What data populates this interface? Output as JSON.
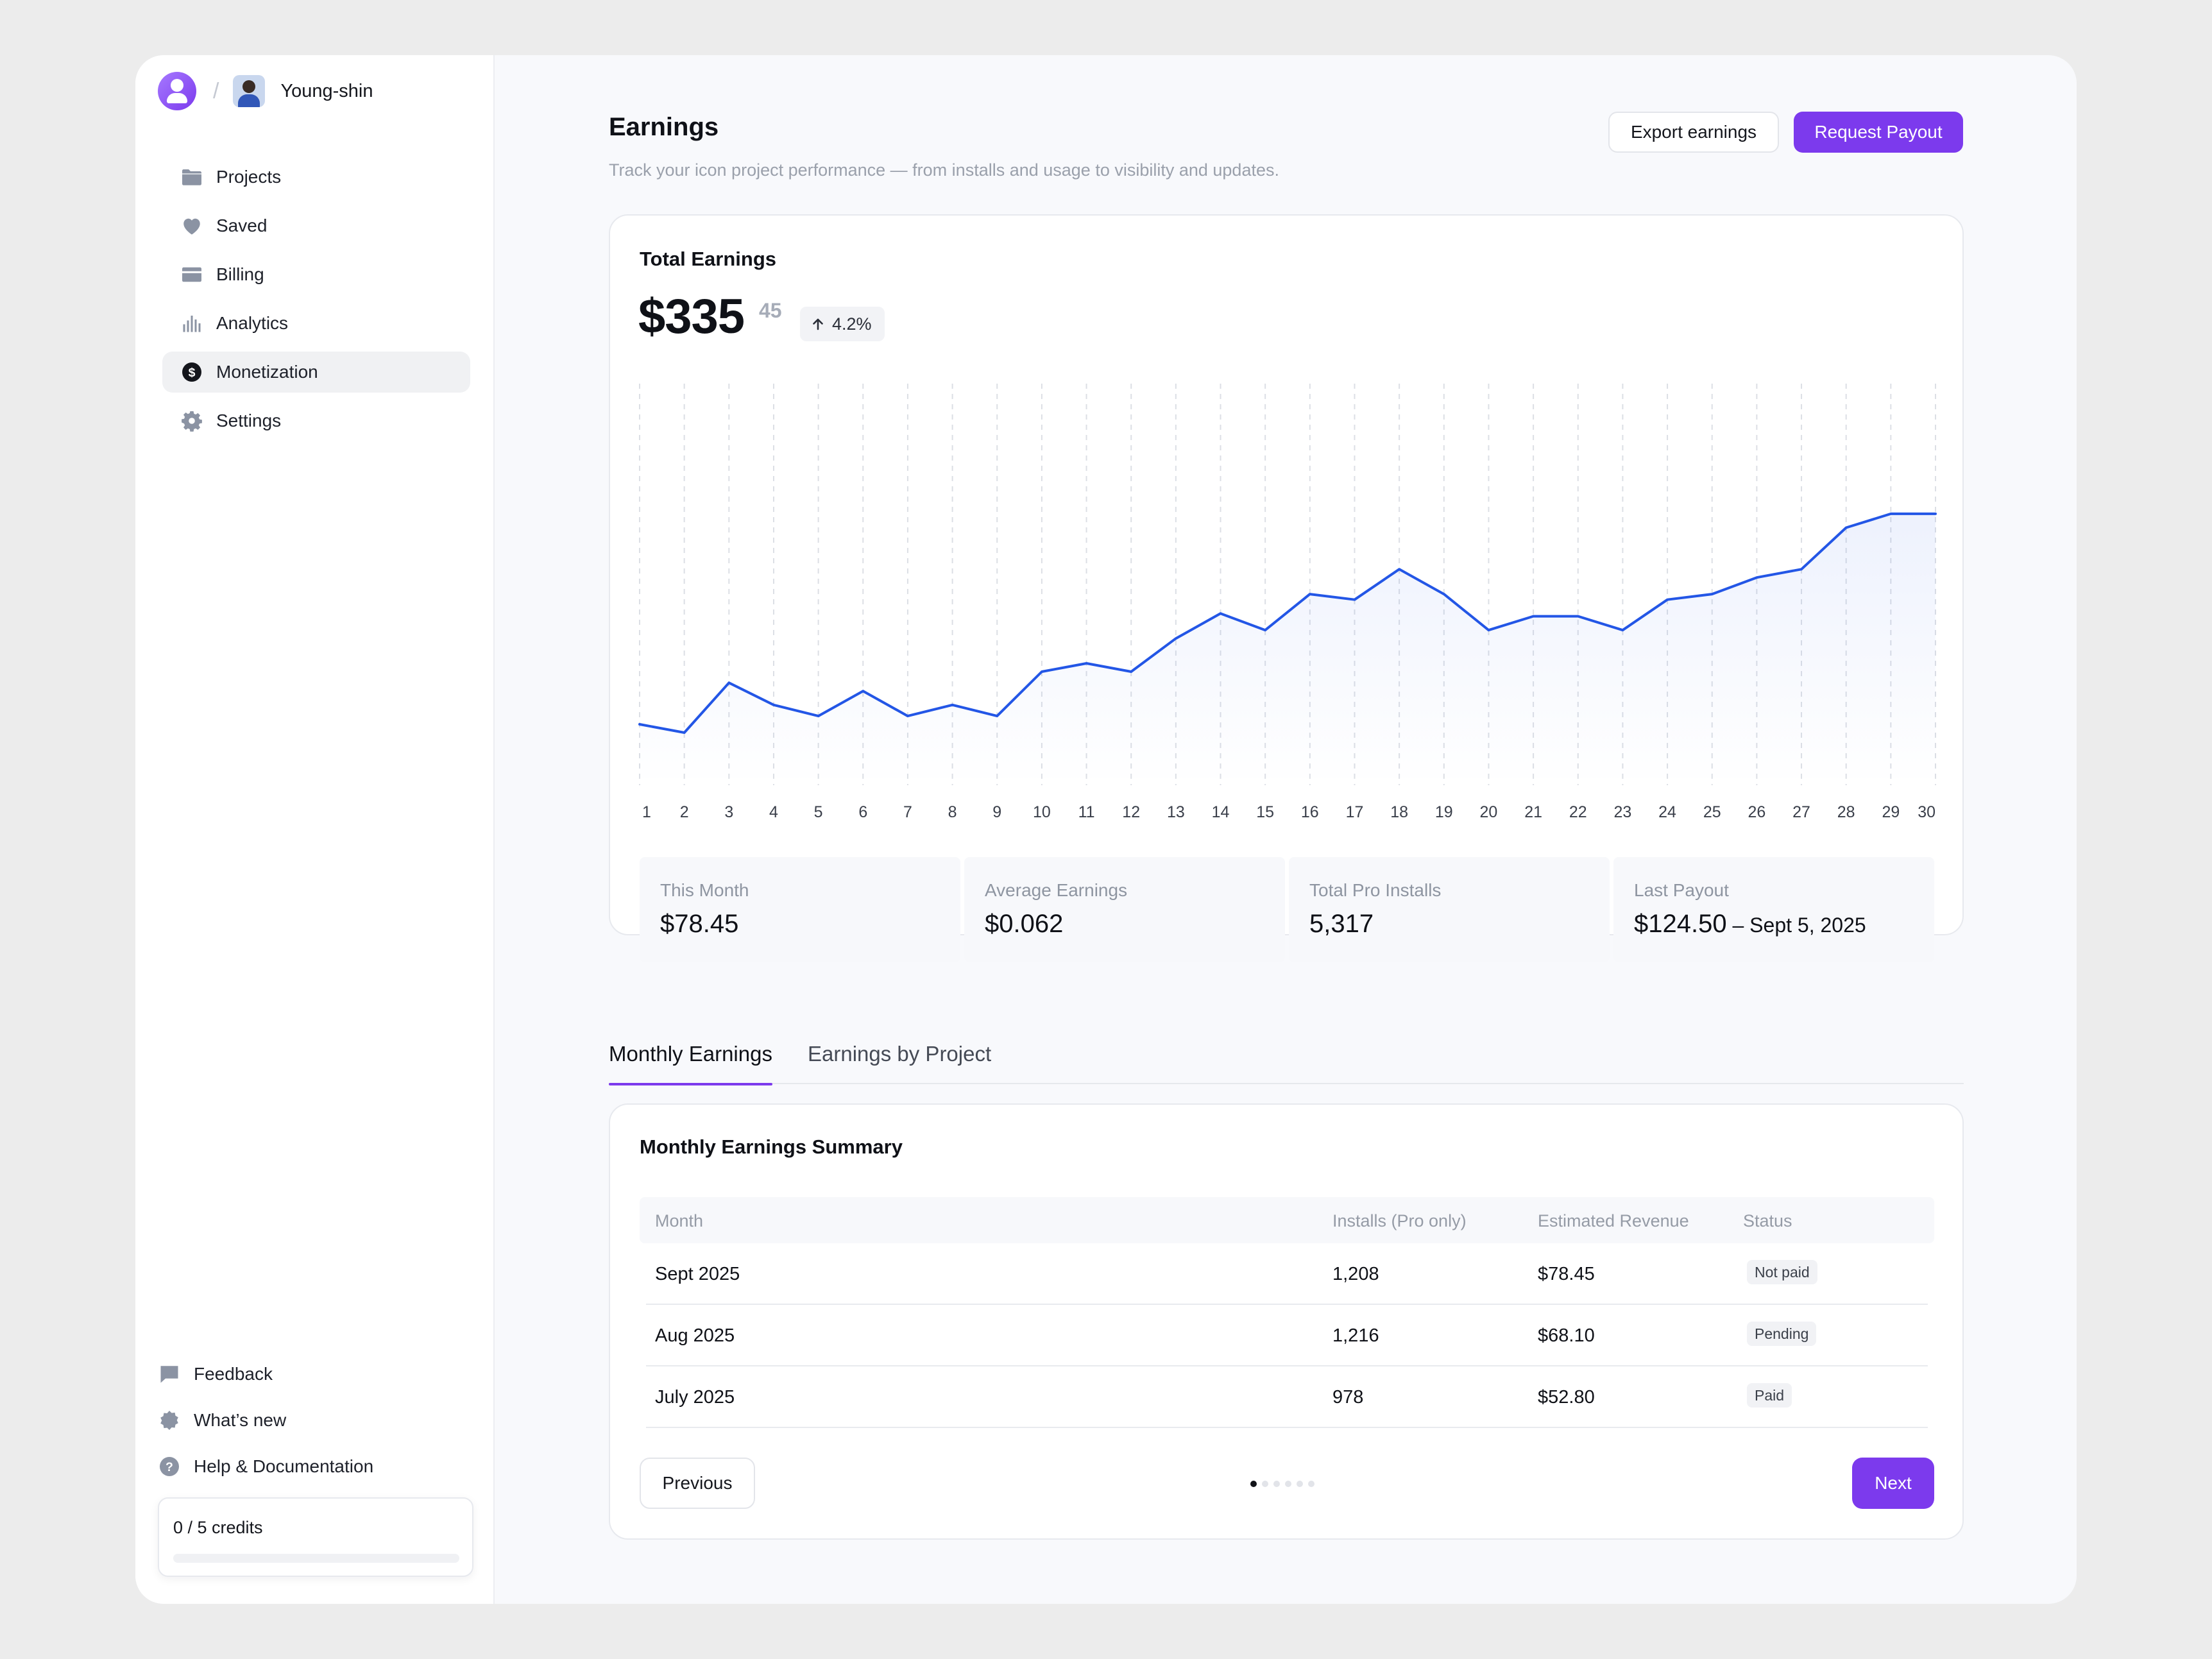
{
  "user": {
    "name": "Young-shin"
  },
  "sidebar": {
    "items": [
      {
        "label": "Projects",
        "icon": "folder-icon"
      },
      {
        "label": "Saved",
        "icon": "heart-icon"
      },
      {
        "label": "Billing",
        "icon": "card-icon"
      },
      {
        "label": "Analytics",
        "icon": "bar-chart-icon"
      },
      {
        "label": "Monetization",
        "icon": "dollar-icon",
        "active": true
      },
      {
        "label": "Settings",
        "icon": "gear-icon"
      }
    ],
    "bottom": [
      {
        "label": "Feedback",
        "icon": "chat-icon"
      },
      {
        "label": "What’s new",
        "icon": "badge-star-icon"
      },
      {
        "label": "Help & Documentation",
        "icon": "help-icon"
      }
    ],
    "credits": {
      "label": "0 / 5 credits",
      "used": 0,
      "total": 5
    }
  },
  "header": {
    "title": "Earnings",
    "subtitle": "Track your icon project performance — from installs and usage to visibility and updates.",
    "export_label": "Export earnings",
    "payout_label": "Request Payout"
  },
  "earnings": {
    "title": "Total Earnings",
    "amount": "$335",
    "cents": "45",
    "change": "4.2%"
  },
  "chart_data": {
    "type": "area",
    "title": "Total Earnings",
    "x": [
      1,
      2,
      3,
      4,
      5,
      6,
      7,
      8,
      9,
      10,
      11,
      12,
      13,
      14,
      15,
      16,
      17,
      18,
      19,
      20,
      21,
      22,
      23,
      24,
      25,
      26,
      27,
      28,
      29,
      30
    ],
    "series": [
      {
        "name": "Earnings",
        "values": [
          22,
          19,
          37,
          29,
          25,
          34,
          25,
          29,
          25,
          41,
          44,
          41,
          53,
          62,
          56,
          69,
          67,
          78,
          69,
          56,
          61,
          61,
          56,
          67,
          69,
          75,
          78,
          93,
          98,
          98
        ]
      }
    ],
    "ylim": [
      0,
      145
    ],
    "grid": "vertical dashed",
    "color": "#2356e6"
  },
  "stats": [
    {
      "label": "This Month",
      "value": "$78.45"
    },
    {
      "label": "Average Earnings",
      "value": "$0.062"
    },
    {
      "label": "Total Pro Installs",
      "value": "5,317"
    },
    {
      "label": "Last Payout",
      "value": "$124.50",
      "date": " – Sept 5, 2025"
    }
  ],
  "tabs": [
    {
      "label": "Monthly Earnings",
      "active": true
    },
    {
      "label": "Earnings by Project",
      "active": false
    }
  ],
  "table": {
    "title": "Monthly Earnings Summary",
    "columns": [
      "Month",
      "Installs (Pro only)",
      "Estimated Revenue",
      "Status"
    ],
    "rows": [
      {
        "month": "Sept 2025",
        "installs": "1,208",
        "revenue": "$78.45",
        "status": "Not paid"
      },
      {
        "month": "Aug 2025",
        "installs": "1,216",
        "revenue": "$68.10",
        "status": "Pending"
      },
      {
        "month": "July 2025",
        "installs": "978",
        "revenue": "$52.80",
        "status": "Paid"
      }
    ],
    "prev_label": "Previous",
    "next_label": "Next",
    "page": 1,
    "pages": 6
  },
  "colors": {
    "accent": "#7c3aed",
    "line": "#2356e6"
  }
}
